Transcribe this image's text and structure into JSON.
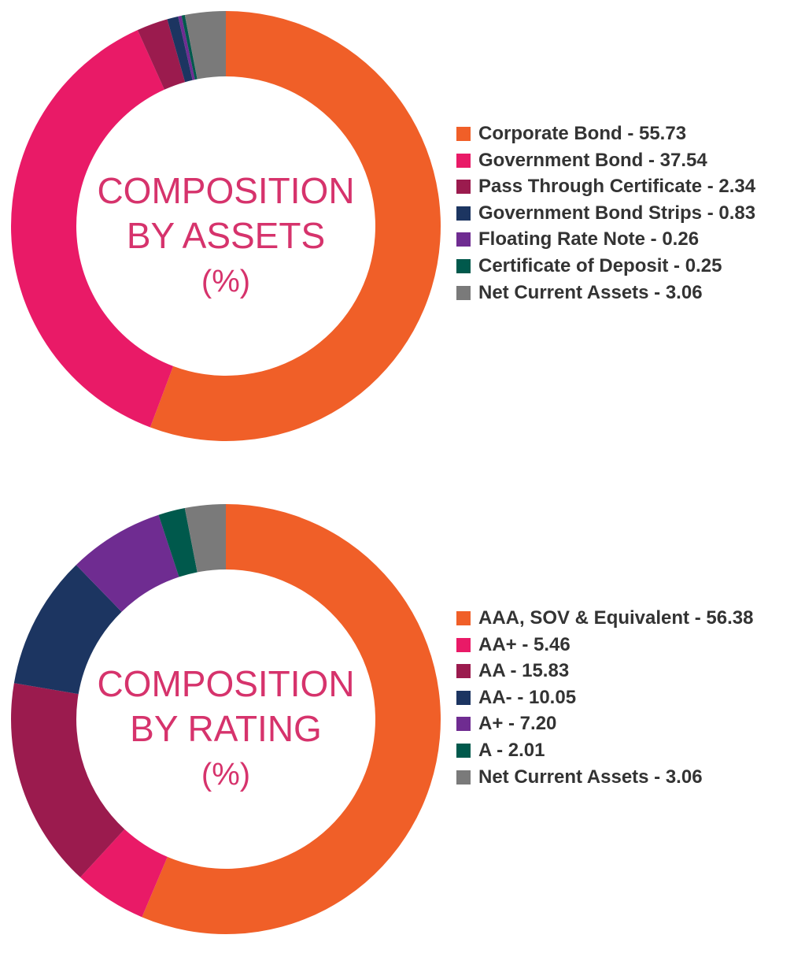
{
  "chart_data": [
    {
      "type": "pie",
      "variant": "donut",
      "title_lines": [
        "COMPOSITION",
        "BY ASSETS",
        "(%)"
      ],
      "categories": [
        "Corporate Bond",
        "Government Bond",
        "Pass Through Certificate",
        "Government Bond Strips",
        "Floating Rate Note",
        "Certificate of Deposit",
        "Net Current Assets"
      ],
      "values": [
        55.73,
        37.54,
        2.34,
        0.83,
        0.26,
        0.25,
        3.06
      ],
      "labels": [
        "Corporate Bond - 55.73",
        "Government Bond - 37.54",
        "Pass Through Certificate - 2.34",
        "Government Bond Strips - 0.83",
        "Floating Rate Note - 0.26",
        "Certificate of Deposit - 0.25",
        "Net Current Assets - 3.06"
      ],
      "colors": [
        "#f05f28",
        "#e91a67",
        "#9b1b4e",
        "#1c3561",
        "#6f2c91",
        "#00594c",
        "#7a7a7a"
      ],
      "legend_position": "right"
    },
    {
      "type": "pie",
      "variant": "donut",
      "title_lines": [
        "COMPOSITION",
        "BY RATING",
        "(%)"
      ],
      "categories": [
        "AAA, SOV & Equivalent",
        "AA+",
        "AA",
        "AA-",
        "A+",
        "A",
        "Net Current Assets"
      ],
      "values": [
        56.38,
        5.46,
        15.83,
        10.05,
        7.2,
        2.01,
        3.06
      ],
      "labels": [
        "AAA, SOV & Equivalent - 56.38",
        "AA+ - 5.46",
        "AA - 15.83",
        "AA- - 10.05",
        "A+ - 7.20",
        "A - 2.01",
        "Net Current Assets - 3.06"
      ],
      "colors": [
        "#f05f28",
        "#e91a67",
        "#9b1b4e",
        "#1c3561",
        "#6f2c91",
        "#00594c",
        "#7a7a7a"
      ],
      "legend_position": "right"
    }
  ],
  "style": {
    "center_text_color": "#d6336c",
    "legend_text_color": "#333333"
  }
}
